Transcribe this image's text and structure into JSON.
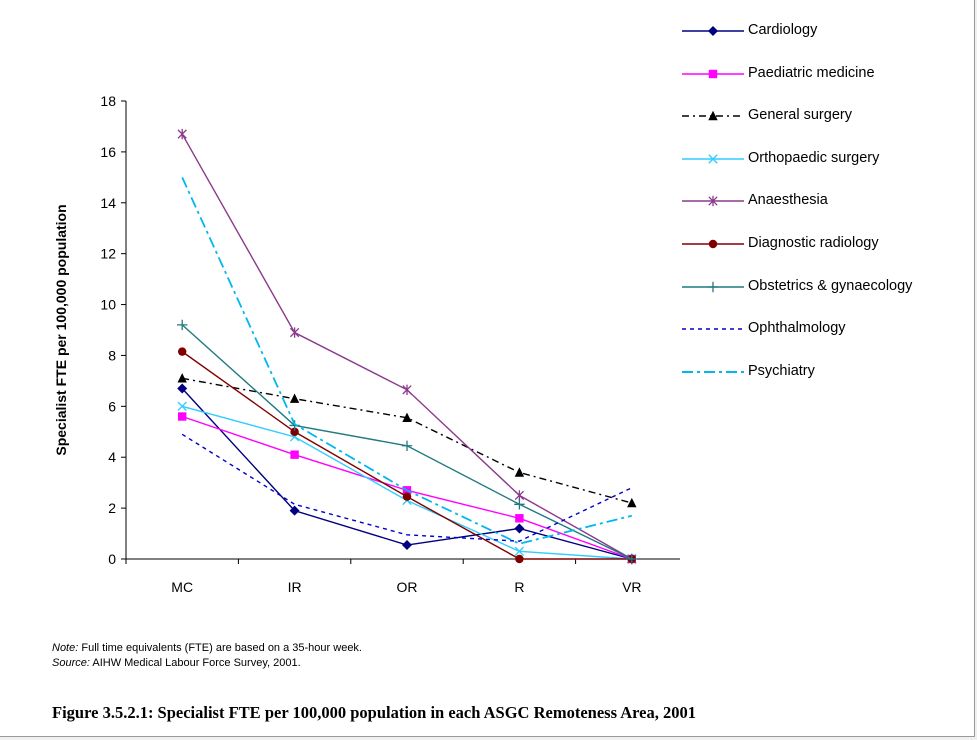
{
  "chart_data": {
    "type": "line",
    "categories": [
      "MC",
      "IR",
      "OR",
      "R",
      "VR"
    ],
    "ylabel": "Specialist FTE per 100,000 population",
    "xlabel": "",
    "ylim": [
      0,
      18
    ],
    "yticks": [
      0,
      2,
      4,
      6,
      8,
      10,
      12,
      14,
      16,
      18
    ],
    "grid": false,
    "legend_position": "right",
    "series": [
      {
        "name": "Cardiology",
        "values": [
          6.7,
          1.9,
          0.55,
          1.2,
          0.0
        ],
        "color": "#000080",
        "marker": "diamond",
        "dash": "solid"
      },
      {
        "name": "Paediatric medicine",
        "values": [
          5.6,
          4.1,
          2.7,
          1.6,
          0.0
        ],
        "color": "#ff00ff",
        "marker": "square",
        "dash": "solid"
      },
      {
        "name": "General surgery",
        "values": [
          7.1,
          6.3,
          5.55,
          3.4,
          2.2
        ],
        "color": "#000000",
        "marker": "triangle",
        "dash": "dashdot"
      },
      {
        "name": "Orthopaedic surgery",
        "values": [
          6.0,
          4.8,
          2.3,
          0.3,
          0.0
        ],
        "color": "#33ccff",
        "marker": "x",
        "dash": "solid"
      },
      {
        "name": "Anaesthesia",
        "values": [
          16.7,
          8.9,
          6.65,
          2.5,
          0.0
        ],
        "color": "#8b3a8b",
        "marker": "star",
        "dash": "solid"
      },
      {
        "name": "Diagnostic radiology",
        "values": [
          8.15,
          5.0,
          2.45,
          0.0,
          0.0
        ],
        "color": "#800000",
        "marker": "circle",
        "dash": "solid"
      },
      {
        "name": "Obstetrics & gynaecology",
        "values": [
          9.2,
          5.25,
          4.45,
          2.15,
          0.0
        ],
        "color": "#1f7a80",
        "marker": "plus",
        "dash": "solid"
      },
      {
        "name": "Ophthalmology",
        "values": [
          4.9,
          2.15,
          0.95,
          0.7,
          2.8
        ],
        "color": "#0000cc",
        "marker": "none",
        "dash": "dotted"
      },
      {
        "name": "Psychiatry",
        "values": [
          15.0,
          5.3,
          2.7,
          0.6,
          1.7
        ],
        "color": "#00b7ef",
        "marker": "none",
        "dash": "longdashdot"
      }
    ]
  },
  "notes": {
    "note_label": "Note:",
    "note_text": " Full time equivalents (FTE) are based on a 35-hour week.",
    "source_label": "Source:",
    "source_text": " AIHW Medical Labour Force Survey, 2001."
  },
  "caption": "Figure 3.5.2.1: Specialist FTE per 100,000 population in each ASGC Remoteness Area, 2001"
}
